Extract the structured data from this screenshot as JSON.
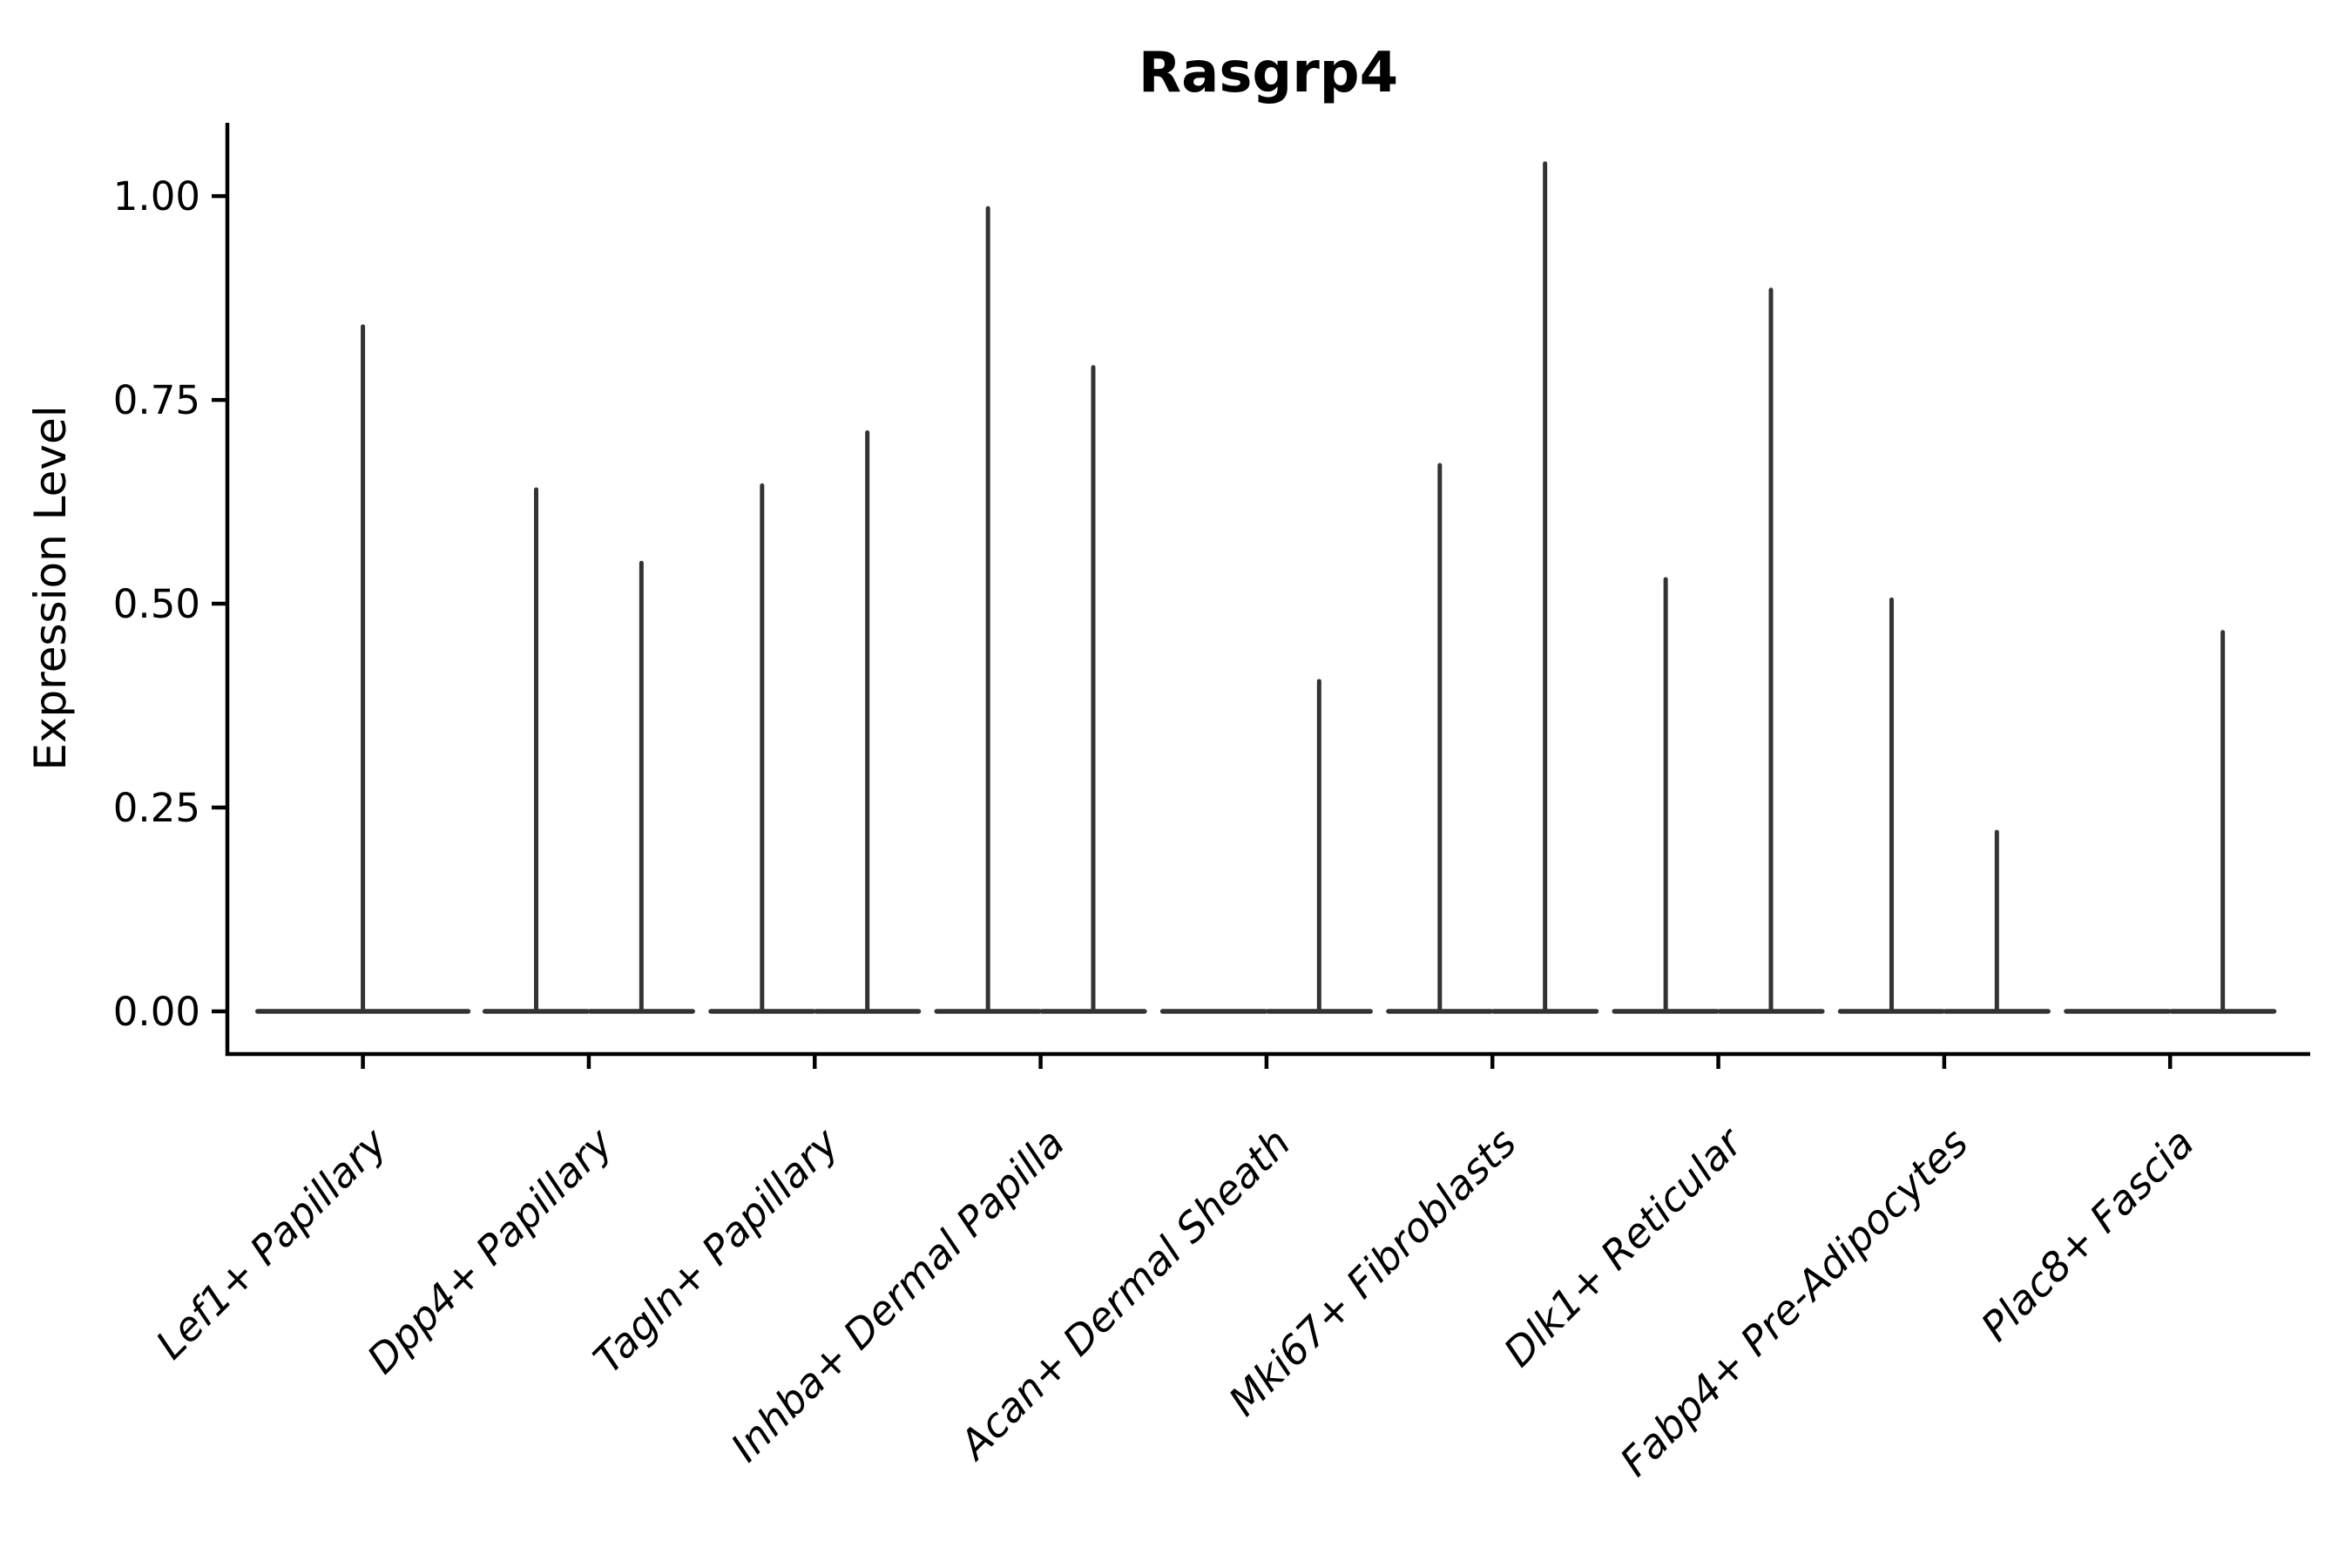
{
  "chart_data": {
    "type": "violin",
    "title": "Rasgrp4",
    "ylabel": "Expression Level",
    "xlabel": "",
    "grid": false,
    "legend": "none",
    "axis_color": "#000000",
    "violin_color": "#333333",
    "background_color": "#ffffff",
    "ylim": [
      -0.0524,
      1.0899
    ],
    "xlim": [
      -0.6,
      8.62
    ],
    "yticks": [
      {
        "value": 0.0,
        "label": "0.00"
      },
      {
        "value": 0.25,
        "label": "0.25"
      },
      {
        "value": 0.5,
        "label": "0.50"
      },
      {
        "value": 0.75,
        "label": "0.75"
      },
      {
        "value": 1.0,
        "label": "1.00"
      }
    ],
    "baseline_value": 0,
    "categories": [
      {
        "label": "Lef1+ Papillary",
        "violins": [
          {
            "x_offset": 0.0,
            "half_width": 0.466,
            "max": 0.84
          }
        ]
      },
      {
        "label": "Dpp4+ Papillary",
        "violins": [
          {
            "x_offset": -0.233,
            "half_width": 0.227,
            "max": 0.64
          },
          {
            "x_offset": 0.233,
            "half_width": 0.227,
            "max": 0.55
          }
        ]
      },
      {
        "label": "Tagln+ Papillary",
        "violins": [
          {
            "x_offset": -0.233,
            "half_width": 0.227,
            "max": 0.645
          },
          {
            "x_offset": 0.233,
            "half_width": 0.227,
            "max": 0.71
          }
        ]
      },
      {
        "label": "Inhba+ Dermal Papilla",
        "violins": [
          {
            "x_offset": -0.233,
            "half_width": 0.227,
            "max": 0.985
          },
          {
            "x_offset": 0.233,
            "half_width": 0.227,
            "max": 0.79
          }
        ]
      },
      {
        "label": "Acan+ Dermal Sheath",
        "violins": [
          {
            "x_offset": -0.233,
            "half_width": 0.227,
            "max": 0
          },
          {
            "x_offset": 0.233,
            "half_width": 0.227,
            "max": 0.405
          }
        ]
      },
      {
        "label": "Mki67+ Fibroblasts",
        "violins": [
          {
            "x_offset": -0.233,
            "half_width": 0.227,
            "max": 0.67
          },
          {
            "x_offset": 0.233,
            "half_width": 0.227,
            "max": 1.04
          }
        ]
      },
      {
        "label": "Dlk1+ Reticular",
        "violins": [
          {
            "x_offset": -0.233,
            "half_width": 0.227,
            "max": 0.53
          },
          {
            "x_offset": 0.233,
            "half_width": 0.227,
            "max": 0.885
          }
        ]
      },
      {
        "label": "Fabp4+ Pre-Adipocytes",
        "violins": [
          {
            "x_offset": -0.233,
            "half_width": 0.227,
            "max": 0.505
          },
          {
            "x_offset": 0.233,
            "half_width": 0.227,
            "max": 0.22
          }
        ]
      },
      {
        "label": "Plac8+ Fascia",
        "violins": [
          {
            "x_offset": -0.233,
            "half_width": 0.227,
            "max": 0
          },
          {
            "x_offset": 0.233,
            "half_width": 0.227,
            "max": 0.465
          }
        ]
      }
    ]
  }
}
